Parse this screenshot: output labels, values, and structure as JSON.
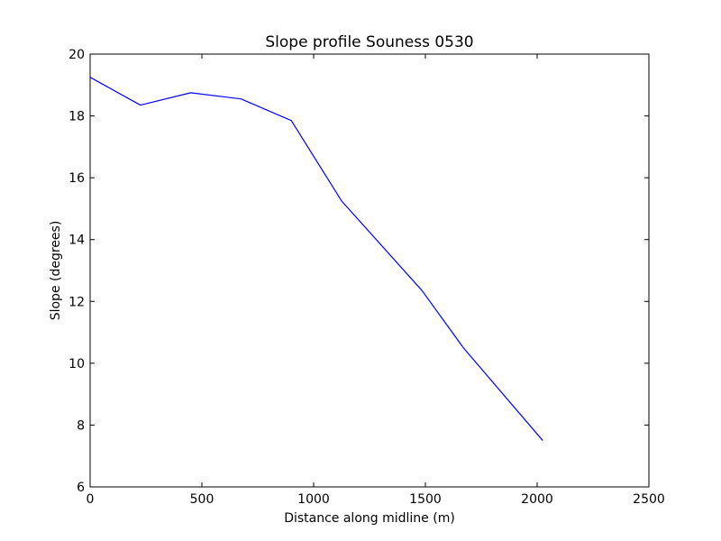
{
  "chart_data": {
    "type": "line",
    "title": "Slope profile Souness 0530",
    "xlabel": "Distance along midline (m)",
    "ylabel": "Slope (degrees)",
    "xlim": [
      0,
      2500
    ],
    "ylim": [
      6,
      20
    ],
    "xticks": [
      0,
      500,
      1000,
      1500,
      2000,
      2500
    ],
    "yticks": [
      6,
      8,
      10,
      12,
      14,
      16,
      18,
      20
    ],
    "xtick_labels": [
      "0",
      "500",
      "1000",
      "1500",
      "2000",
      "2500"
    ],
    "ytick_labels": [
      "6",
      "8",
      "10",
      "12",
      "14",
      "16",
      "18",
      "20"
    ],
    "grid": false,
    "legend": "none",
    "series": [
      {
        "color": "#0000ff",
        "x": [
          0,
          225,
          450,
          675,
          900,
          1125,
          1485,
          1670,
          2025
        ],
        "y": [
          19.25,
          18.35,
          18.75,
          18.55,
          17.85,
          15.25,
          12.35,
          10.5,
          7.5
        ]
      }
    ]
  }
}
